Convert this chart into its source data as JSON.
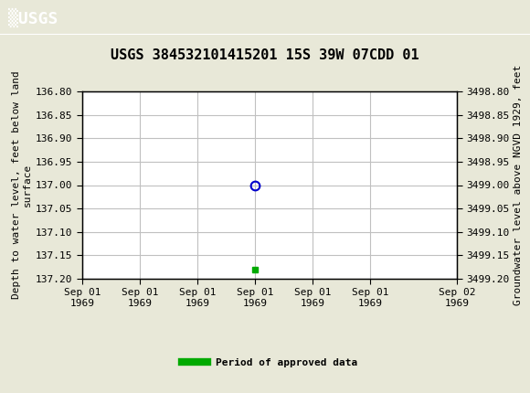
{
  "title": "USGS 384532101415201 15S 39W 07CDD 01",
  "ylabel_left": "Depth to water level, feet below land\nsurface",
  "ylabel_right": "Groundwater level above NGVD 1929, feet",
  "ylim_left": [
    136.8,
    137.2
  ],
  "ylim_right": [
    3498.8,
    3499.2
  ],
  "yticks_left": [
    136.8,
    136.85,
    136.9,
    136.95,
    137.0,
    137.05,
    137.1,
    137.15,
    137.2
  ],
  "yticks_right": [
    3498.8,
    3498.85,
    3498.9,
    3498.95,
    3499.0,
    3499.05,
    3499.1,
    3499.15,
    3499.2
  ],
  "point_x_days": 3.0,
  "point_y": 137.0,
  "green_point_x_days": 3.0,
  "green_point_y": 137.18,
  "header_color": "#1a6b3c",
  "bg_color": "#e8e8d8",
  "plot_bg_color": "#ffffff",
  "grid_color": "#c0c0c0",
  "title_fontsize": 11,
  "axis_label_fontsize": 8,
  "tick_fontsize": 8,
  "legend_label": "Period of approved data",
  "legend_color": "#00aa00",
  "point_color": "#0000cc",
  "font_family": "monospace",
  "x_start_days": 0,
  "x_end_days": 6.5,
  "xtick_positions_days": [
    0.0,
    1.0,
    2.0,
    3.0,
    4.0,
    5.0,
    6.5
  ],
  "xtick_labels": [
    "Sep 01\n1969",
    "Sep 01\n1969",
    "Sep 01\n1969",
    "Sep 01\n1969",
    "Sep 01\n1969",
    "Sep 01\n1969",
    "Sep 02\n1969"
  ]
}
